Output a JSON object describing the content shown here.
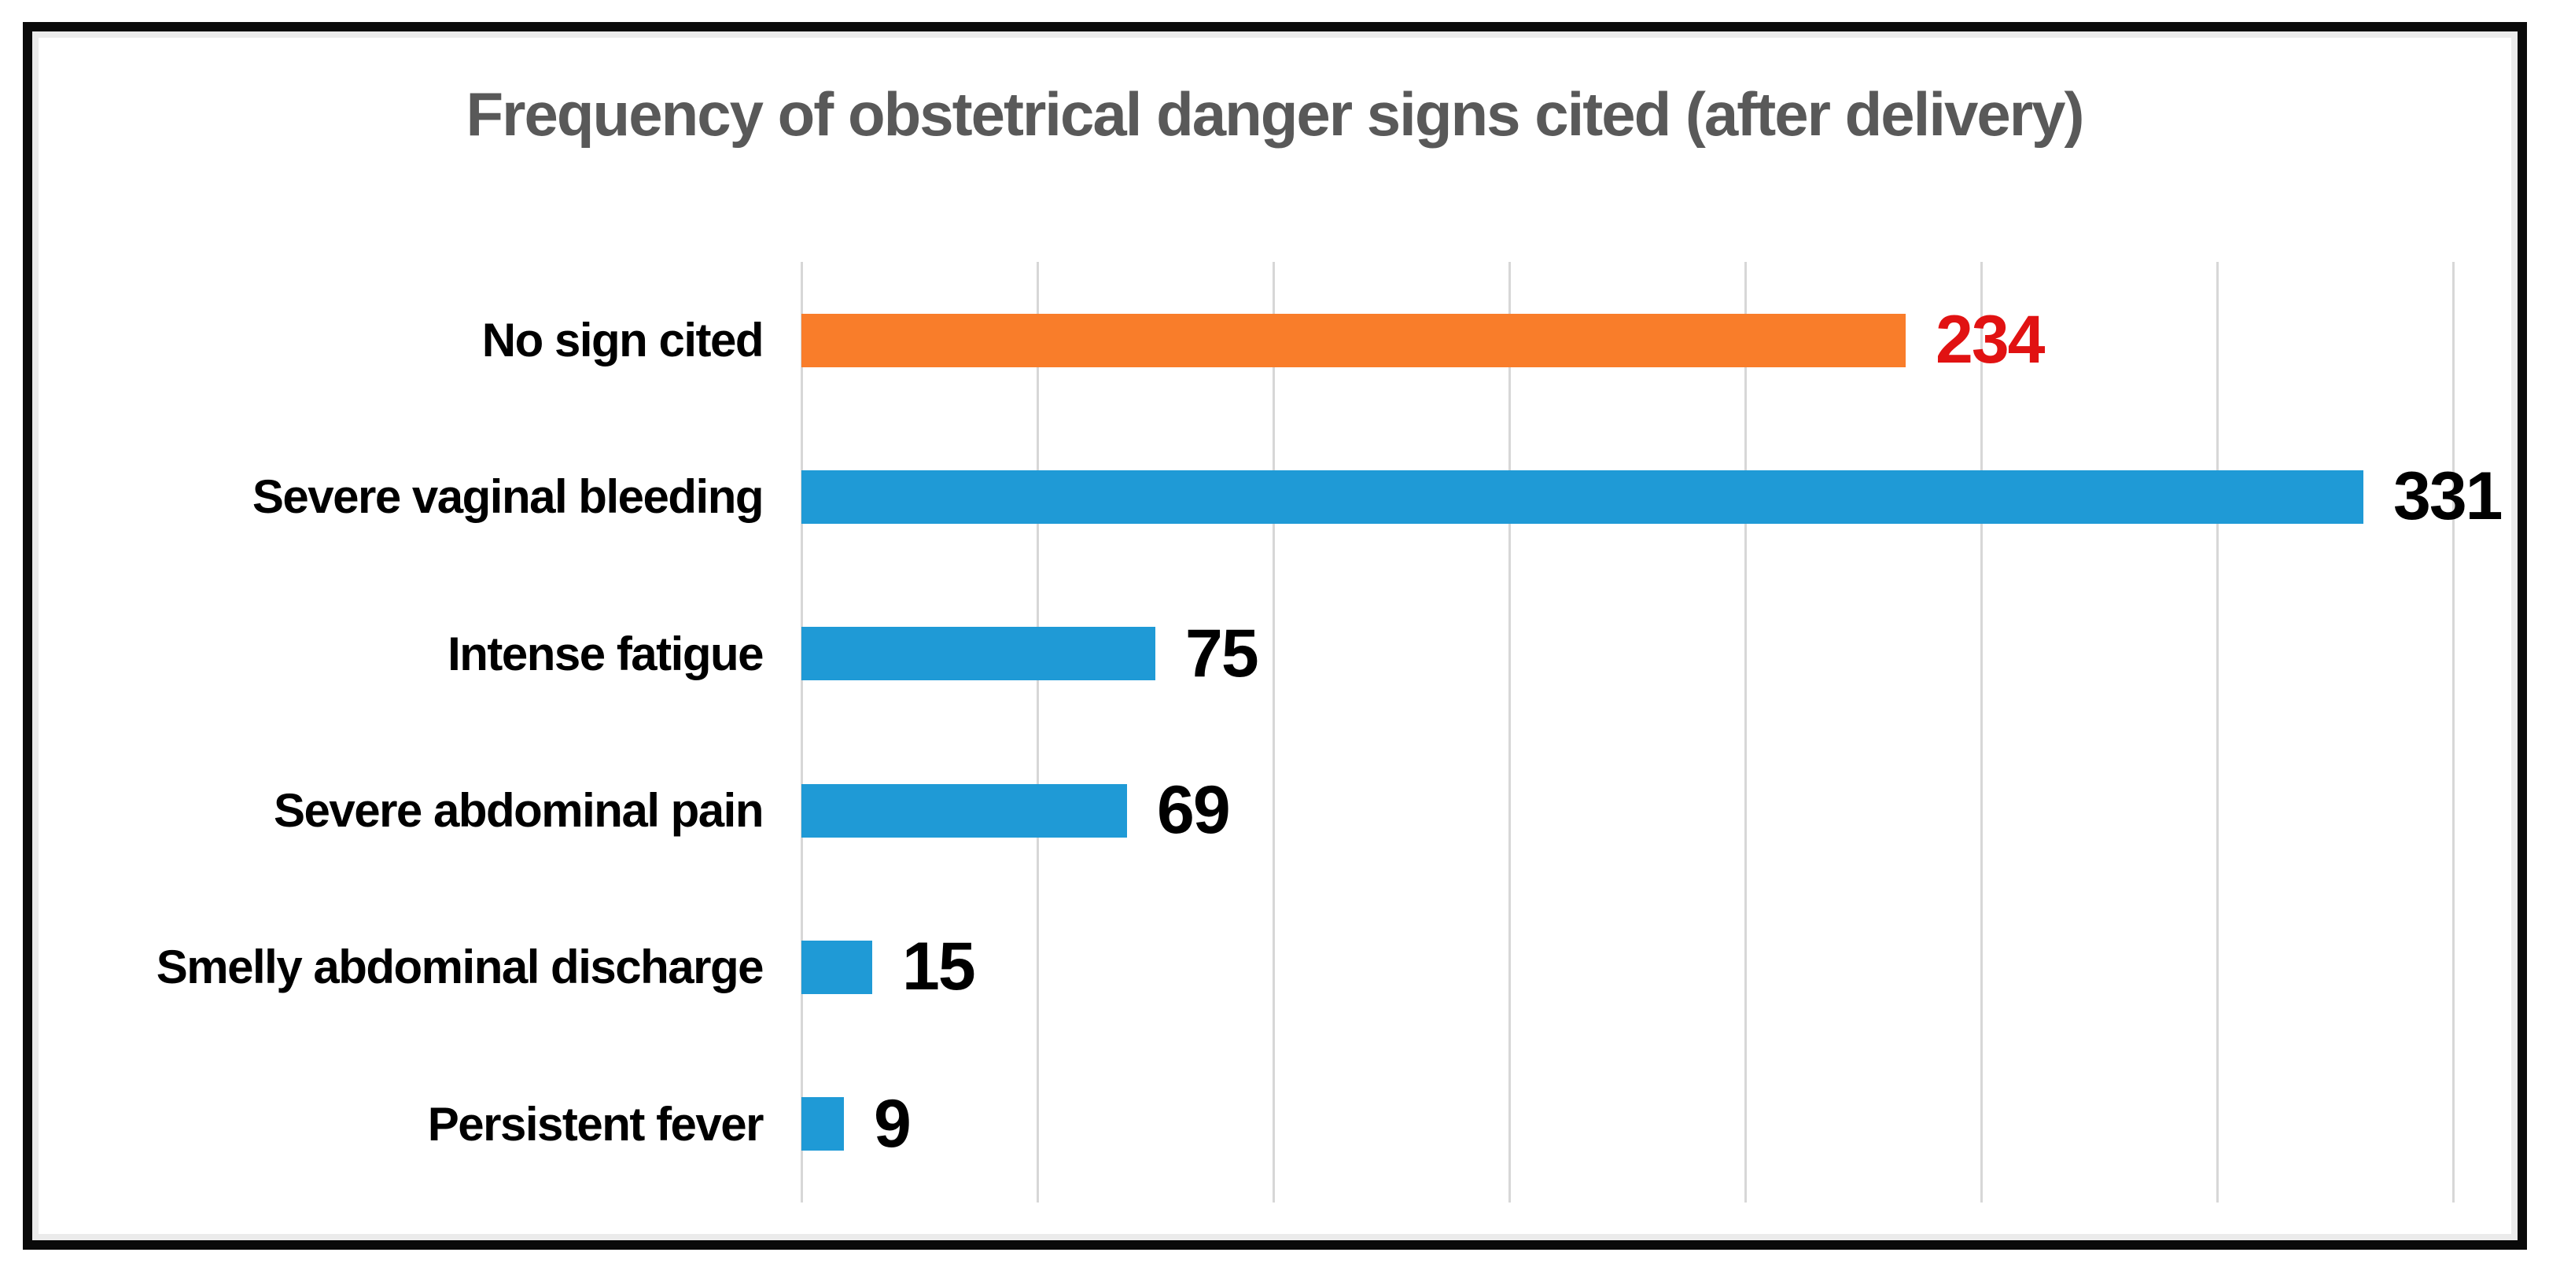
{
  "colors": {
    "frame_border": "#0a0a0a",
    "title_text": "#595959",
    "gridline": "#d7d7d7",
    "bar_blue": "#1f9ad6",
    "bar_orange": "#f97d2a",
    "value_red": "#e11212",
    "value_black": "#000000"
  },
  "chart_data": {
    "type": "bar",
    "orientation": "horizontal",
    "title": "Frequency of obstetrical danger signs cited (after delivery)",
    "categories": [
      "No sign cited",
      "Severe vaginal bleeding",
      "Intense fatigue",
      "Severe abdominal pain",
      "Smelly abdominal discharge",
      "Persistent fever"
    ],
    "values": [
      234,
      331,
      75,
      69,
      15,
      9
    ],
    "bar_colors": [
      "#f97d2a",
      "#1f9ad6",
      "#1f9ad6",
      "#1f9ad6",
      "#1f9ad6",
      "#1f9ad6"
    ],
    "value_label_colors": [
      "#e11212",
      "#000000",
      "#000000",
      "#000000",
      "#000000",
      "#000000"
    ],
    "xlabel": "",
    "ylabel": "",
    "xlim": [
      0,
      350
    ],
    "gridline_interval": 50,
    "grid": true,
    "legend": false,
    "value_labels_shown": true,
    "axis_tick_labels_shown": false
  }
}
